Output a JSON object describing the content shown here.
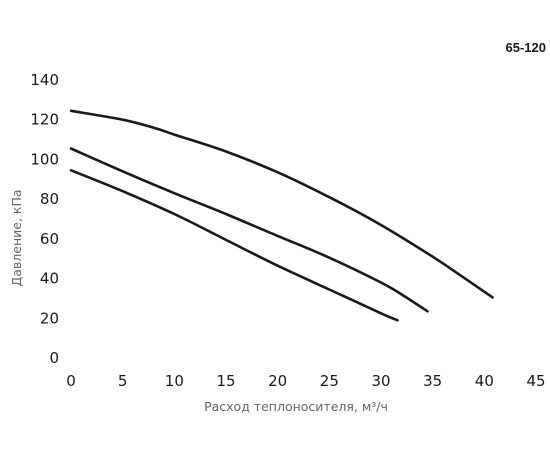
{
  "chart_data": {
    "type": "line",
    "title": "65-120",
    "xlabel": "Расход теплоносителя, м³/ч",
    "ylabel": "Давление, кПа",
    "xlim": [
      0,
      45
    ],
    "ylim": [
      0,
      140
    ],
    "x_ticks": [
      "0",
      "5",
      "10",
      "15",
      "20",
      "25",
      "30",
      "35",
      "40",
      "45"
    ],
    "y_ticks": [
      "0",
      "20",
      "40",
      "60",
      "80",
      "100",
      "120",
      "140"
    ],
    "grid": false,
    "series": [
      {
        "x": [
          0,
          5,
          8,
          10,
          15,
          20,
          25,
          30,
          35,
          38,
          40.8
        ],
        "y": [
          124.5,
          120,
          116,
          112.5,
          104,
          93.5,
          81,
          67,
          51,
          40.5,
          30.5
        ],
        "color": "#1a1a1a"
      },
      {
        "x": [
          0,
          5,
          10,
          15,
          20,
          25,
          30,
          32,
          34.5
        ],
        "y": [
          105.5,
          94,
          83,
          72.5,
          61.5,
          50.5,
          38,
          32,
          23.5
        ],
        "color": "#1a1a1a"
      },
      {
        "x": [
          0,
          5,
          10,
          15,
          20,
          25,
          30,
          31.6
        ],
        "y": [
          94.5,
          84,
          72.5,
          59.5,
          46.5,
          34.5,
          22.5,
          19
        ],
        "color": "#1a1a1a"
      }
    ]
  }
}
